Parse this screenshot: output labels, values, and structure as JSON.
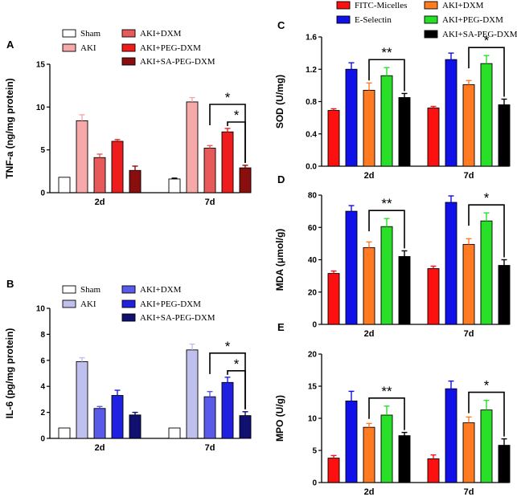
{
  "figure": {
    "colors": {
      "sham": "#ffffff",
      "aki_a": "#f7a8a8",
      "dxm_a": "#e85a5a",
      "peg_a": "#ee1c1c",
      "sa_a": "#8b0e0e",
      "aki_b": "#c0c0ee",
      "dxm_b": "#5a5aea",
      "peg_b": "#2020e0",
      "sa_b": "#101070",
      "fitc": "#ff1010",
      "eselectin": "#1010e8",
      "dxm_r": "#ff7a20",
      "peg_r": "#28e028",
      "sa_r": "#000000"
    }
  },
  "chart_data": [
    {
      "id": "A",
      "letter": "A",
      "type": "bar",
      "ylabel": "TNF-a (ng/mg protein)",
      "ylim": [
        0,
        15
      ],
      "yticks": [
        "0",
        "5",
        "10",
        "15"
      ],
      "categories": [
        "2d",
        "7d"
      ],
      "legend": [
        {
          "label": "Sham",
          "color_key": "sham"
        },
        {
          "label": "AKI",
          "color_key": "aki_a"
        },
        {
          "label": "AKI+DXM",
          "color_key": "dxm_a"
        },
        {
          "label": "AKI+PEG-DXM",
          "color_key": "peg_a"
        },
        {
          "label": "AKI+SA-PEG-DXM",
          "color_key": "sa_a"
        }
      ],
      "series": [
        {
          "name": "Sham",
          "color_key": "sham",
          "values": [
            1.8,
            1.6
          ],
          "errors": [
            0,
            0.1
          ]
        },
        {
          "name": "AKI",
          "color_key": "aki_a",
          "values": [
            8.4,
            10.6
          ],
          "errors": [
            0.7,
            0.5
          ]
        },
        {
          "name": "AKI+DXM",
          "color_key": "dxm_a",
          "values": [
            4.1,
            5.2
          ],
          "errors": [
            0.4,
            0.3
          ]
        },
        {
          "name": "AKI+PEG-DXM",
          "color_key": "peg_a",
          "values": [
            6.0,
            7.1
          ],
          "errors": [
            0.2,
            0.4
          ]
        },
        {
          "name": "AKI+SA-PEG-DXM",
          "color_key": "sa_a",
          "values": [
            2.6,
            2.9
          ],
          "errors": [
            0.5,
            0.3
          ]
        }
      ],
      "annotations": [
        {
          "text": "*",
          "category": 1,
          "from_series": 2,
          "to_series": 4
        },
        {
          "text": "*",
          "category": 1,
          "from_series": 3,
          "to_series": 4
        }
      ]
    },
    {
      "id": "B",
      "letter": "B",
      "type": "bar",
      "ylabel": "IL-6 (pg/mg protein)",
      "ylim": [
        0,
        10
      ],
      "yticks": [
        "0",
        "2",
        "4",
        "6",
        "8",
        "10"
      ],
      "categories": [
        "2d",
        "7d"
      ],
      "legend": [
        {
          "label": "Sham",
          "color_key": "sham"
        },
        {
          "label": "AKI",
          "color_key": "aki_b"
        },
        {
          "label": "AKI+DXM",
          "color_key": "dxm_b"
        },
        {
          "label": "AKI+PEG-DXM",
          "color_key": "peg_b"
        },
        {
          "label": "AKI+SA-PEG-DXM",
          "color_key": "sa_b"
        }
      ],
      "series": [
        {
          "name": "Sham",
          "color_key": "sham",
          "values": [
            0.8,
            0.8
          ],
          "errors": [
            0,
            0
          ]
        },
        {
          "name": "AKI",
          "color_key": "aki_b",
          "values": [
            5.9,
            6.8
          ],
          "errors": [
            0.3,
            0.45
          ]
        },
        {
          "name": "AKI+DXM",
          "color_key": "dxm_b",
          "values": [
            2.3,
            3.2
          ],
          "errors": [
            0.15,
            0.4
          ]
        },
        {
          "name": "AKI+PEG-DXM",
          "color_key": "peg_b",
          "values": [
            3.3,
            4.3
          ],
          "errors": [
            0.4,
            0.4
          ]
        },
        {
          "name": "AKI+SA-PEG-DXM",
          "color_key": "sa_b",
          "values": [
            1.8,
            1.75
          ],
          "errors": [
            0.2,
            0.3
          ]
        }
      ],
      "annotations": [
        {
          "text": "*",
          "category": 1,
          "from_series": 2,
          "to_series": 4
        },
        {
          "text": "*",
          "category": 1,
          "from_series": 3,
          "to_series": 4
        }
      ]
    },
    {
      "id": "C",
      "letter": "C",
      "type": "bar",
      "ylabel": "SOD (U/mg)",
      "ylim": [
        0,
        1.6
      ],
      "yticks": [
        "0.0",
        "0.4",
        "0.8",
        "1.2",
        "1.6"
      ],
      "categories": [
        "2d",
        "7d"
      ],
      "legend": [
        {
          "label": "FITC-Micelles",
          "color_key": "fitc"
        },
        {
          "label": "E-Selectin",
          "color_key": "eselectin"
        },
        {
          "label": "AKI+DXM",
          "color_key": "dxm_r"
        },
        {
          "label": "AKI+PEG-DXM",
          "color_key": "peg_r"
        },
        {
          "label": "AKI+SA-PEG-DXM",
          "color_key": "sa_r"
        }
      ],
      "series": [
        {
          "name": "FITC-Micelles",
          "color_key": "fitc",
          "values": [
            0.69,
            0.72
          ],
          "errors": [
            0.02,
            0.02
          ]
        },
        {
          "name": "E-Selectin",
          "color_key": "eselectin",
          "values": [
            1.2,
            1.32
          ],
          "errors": [
            0.08,
            0.08
          ]
        },
        {
          "name": "AKI+DXM",
          "color_key": "dxm_r",
          "values": [
            0.94,
            1.01
          ],
          "errors": [
            0.09,
            0.05
          ]
        },
        {
          "name": "AKI+PEG-DXM",
          "color_key": "peg_r",
          "values": [
            1.12,
            1.27
          ],
          "errors": [
            0.1,
            0.1
          ]
        },
        {
          "name": "AKI+SA-PEG-DXM",
          "color_key": "sa_r",
          "values": [
            0.85,
            0.76
          ],
          "errors": [
            0.05,
            0.07
          ]
        }
      ],
      "annotations": [
        {
          "text": "**",
          "category": 0,
          "from_series": 2,
          "to_series": 4
        },
        {
          "text": "*",
          "category": 1,
          "from_series": 2,
          "to_series": 4
        }
      ]
    },
    {
      "id": "D",
      "letter": "D",
      "type": "bar",
      "ylabel": "MDA (μmol/g)",
      "ylim": [
        0,
        80
      ],
      "yticks": [
        "0",
        "20",
        "40",
        "60",
        "80"
      ],
      "categories": [
        "2d",
        "7d"
      ],
      "legend": [],
      "series": [
        {
          "name": "FITC-Micelles",
          "color_key": "fitc",
          "values": [
            31.5,
            34.5
          ],
          "errors": [
            1.5,
            1.5
          ]
        },
        {
          "name": "E-Selectin",
          "color_key": "eselectin",
          "values": [
            70,
            75.5
          ],
          "errors": [
            3.5,
            4
          ]
        },
        {
          "name": "AKI+DXM",
          "color_key": "dxm_r",
          "values": [
            47.5,
            49.5
          ],
          "errors": [
            3.5,
            3.5
          ]
        },
        {
          "name": "AKI+PEG-DXM",
          "color_key": "peg_r",
          "values": [
            60.5,
            64
          ],
          "errors": [
            5,
            5
          ]
        },
        {
          "name": "AKI+SA-PEG-DXM",
          "color_key": "sa_r",
          "values": [
            42,
            36.5
          ],
          "errors": [
            3.5,
            3.5
          ]
        }
      ],
      "annotations": [
        {
          "text": "**",
          "category": 0,
          "from_series": 2,
          "to_series": 4
        },
        {
          "text": "*",
          "category": 1,
          "from_series": 2,
          "to_series": 4
        }
      ]
    },
    {
      "id": "E",
      "letter": "E",
      "type": "bar",
      "ylabel": "MPO (U/g)",
      "ylim": [
        0,
        20
      ],
      "yticks": [
        "0",
        "5",
        "10",
        "15",
        "20"
      ],
      "categories": [
        "2d",
        "7d"
      ],
      "legend": [],
      "series": [
        {
          "name": "FITC-Micelles",
          "color_key": "fitc",
          "values": [
            3.8,
            3.7
          ],
          "errors": [
            0.4,
            0.6
          ]
        },
        {
          "name": "E-Selectin",
          "color_key": "eselectin",
          "values": [
            12.7,
            14.6
          ],
          "errors": [
            1.5,
            1.2
          ]
        },
        {
          "name": "AKI+DXM",
          "color_key": "dxm_r",
          "values": [
            8.6,
            9.3
          ],
          "errors": [
            0.6,
            0.9
          ]
        },
        {
          "name": "AKI+PEG-DXM",
          "color_key": "peg_r",
          "values": [
            10.5,
            11.3
          ],
          "errors": [
            1.4,
            1.5
          ]
        },
        {
          "name": "AKI+SA-PEG-DXM",
          "color_key": "sa_r",
          "values": [
            7.3,
            5.8
          ],
          "errors": [
            0.5,
            1
          ]
        }
      ],
      "annotations": [
        {
          "text": "**",
          "category": 0,
          "from_series": 2,
          "to_series": 4
        },
        {
          "text": "*",
          "category": 1,
          "from_series": 2,
          "to_series": 4
        }
      ]
    }
  ]
}
